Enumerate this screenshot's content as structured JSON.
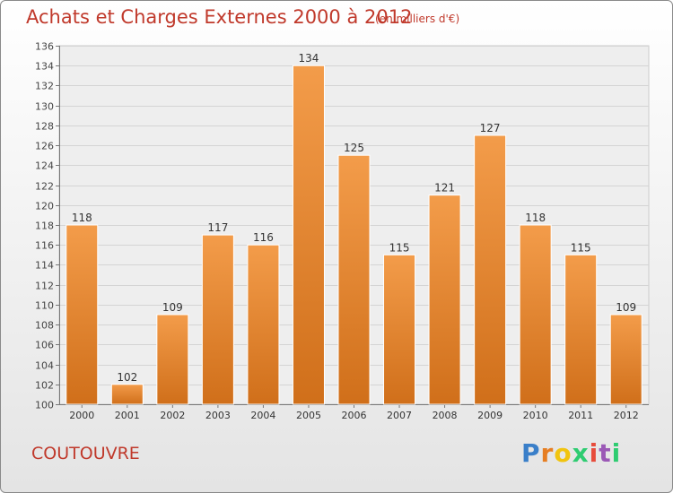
{
  "header": {
    "title": "Achats et Charges Externes 2000 à 2012",
    "subtitle": "(en milliers d'€)"
  },
  "footer": {
    "commune": "COUTOUVRE",
    "logo_letters": [
      "P",
      "r",
      "o",
      "x",
      "i",
      "t",
      "i"
    ],
    "logo_colors": [
      "#3a7fc9",
      "#e67e22",
      "#f1c40f",
      "#2ecc71",
      "#e74c3c",
      "#9b59b6",
      "#2ecc71"
    ]
  },
  "chart_data": {
    "type": "bar",
    "categories": [
      "2000",
      "2001",
      "2002",
      "2003",
      "2004",
      "2005",
      "2006",
      "2007",
      "2008",
      "2009",
      "2010",
      "2011",
      "2012"
    ],
    "values": [
      118,
      102,
      109,
      117,
      116,
      134,
      125,
      115,
      121,
      127,
      118,
      115,
      109
    ],
    "ylim": [
      100,
      136
    ],
    "yticks": [
      100,
      102,
      104,
      106,
      108,
      110,
      112,
      114,
      116,
      118,
      120,
      122,
      124,
      126,
      128,
      130,
      132,
      134,
      136
    ],
    "grid": true,
    "bar_color": "#f39c4a",
    "bar_color_dark": "#d06f1a"
  }
}
